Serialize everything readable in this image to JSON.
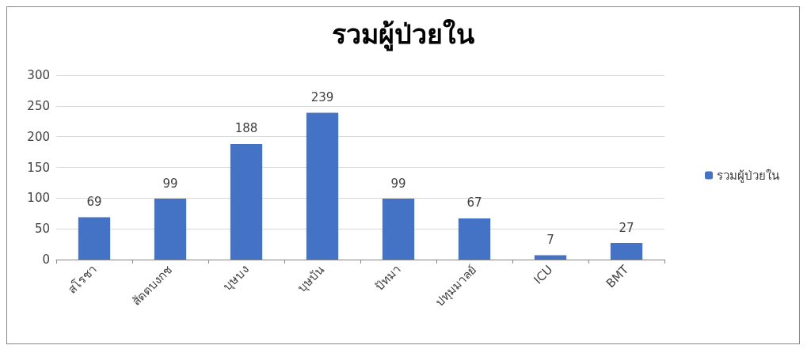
{
  "chart_data": {
    "type": "bar",
    "title": "รวมผู้ป่วยใน",
    "categories": [
      "สโรชา",
      "สัตตบงกช",
      "บุษบง",
      "บุษบัน",
      "ปัทมา",
      "ปทุมมาลย์",
      "ICU",
      "BMT"
    ],
    "series": [
      {
        "name": "รวมผู้ป่วยใน",
        "color": "#4472c4",
        "values": [
          69,
          99,
          188,
          239,
          99,
          67,
          7,
          27
        ]
      }
    ],
    "ylim": [
      0,
      300
    ],
    "yticks": [
      0,
      50,
      100,
      150,
      200,
      250,
      300
    ],
    "grid": "y",
    "legend": "right",
    "data_labels": true
  }
}
